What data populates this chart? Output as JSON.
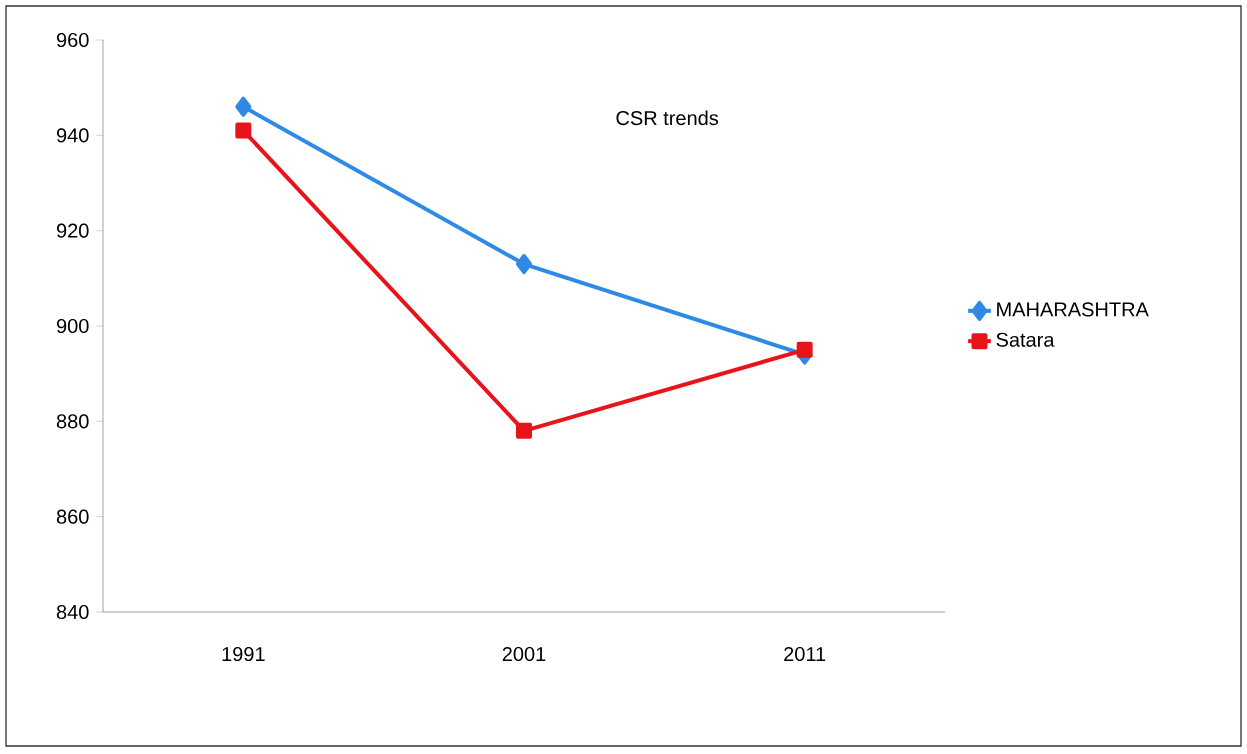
{
  "chart_data": {
    "type": "line",
    "title": "CSR trends",
    "categories": [
      "1991",
      "2001",
      "2011"
    ],
    "series": [
      {
        "name": "MAHARASHTRA",
        "color": "#2f8ae6",
        "marker": "diamond",
        "values": [
          946,
          913,
          894
        ]
      },
      {
        "name": "Satara",
        "color": "#e8141c",
        "marker": "square",
        "values": [
          941,
          878,
          895
        ]
      }
    ],
    "ylim": [
      840,
      960
    ],
    "yticks": [
      840,
      860,
      880,
      900,
      920,
      940,
      960
    ],
    "grid": false,
    "legend": "right"
  }
}
